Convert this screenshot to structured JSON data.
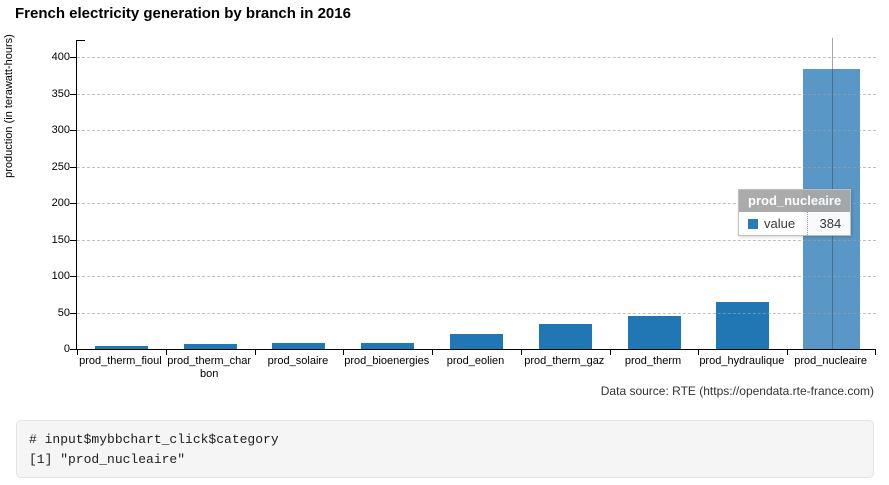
{
  "page": {
    "title": "French electricity generation by branch in 2016"
  },
  "chart_data": {
    "type": "bar",
    "title": "French electricity generation by branch in 2016",
    "xlabel": "",
    "ylabel": "production (in terawatt-hours)",
    "categories": [
      "prod_therm_fioul",
      "prod_therm_charbon",
      "prod_solaire",
      "prod_bioenergies",
      "prod_eolien",
      "prod_therm_gaz",
      "prod_therm",
      "prod_hydraulique",
      "prod_nucleaire"
    ],
    "series": [
      {
        "name": "value",
        "values": [
          3.6,
          7.3,
          8.3,
          8.7,
          20.7,
          35.0,
          45.9,
          63.9,
          384
        ]
      }
    ],
    "ylim": [
      0,
      424
    ],
    "yticks": [
      0,
      50,
      100,
      150,
      200,
      250,
      300,
      350,
      400
    ],
    "grid": "horizontal-dashed",
    "legend": "none",
    "bar_color": "#2176B4",
    "highlighted_category": "prod_nucleaire",
    "highlight_color": "#5997C6",
    "source_note": "Data source: RTE (https://opendata.rte-france.com)"
  },
  "tooltip": {
    "header": "prod_nucleaire",
    "series_label": "value",
    "value": "384",
    "swatch_color": "#2176B4"
  },
  "console": {
    "line1": "# input$mybbchart_click$category",
    "line2": "[1] \"prod_nucleaire\""
  }
}
